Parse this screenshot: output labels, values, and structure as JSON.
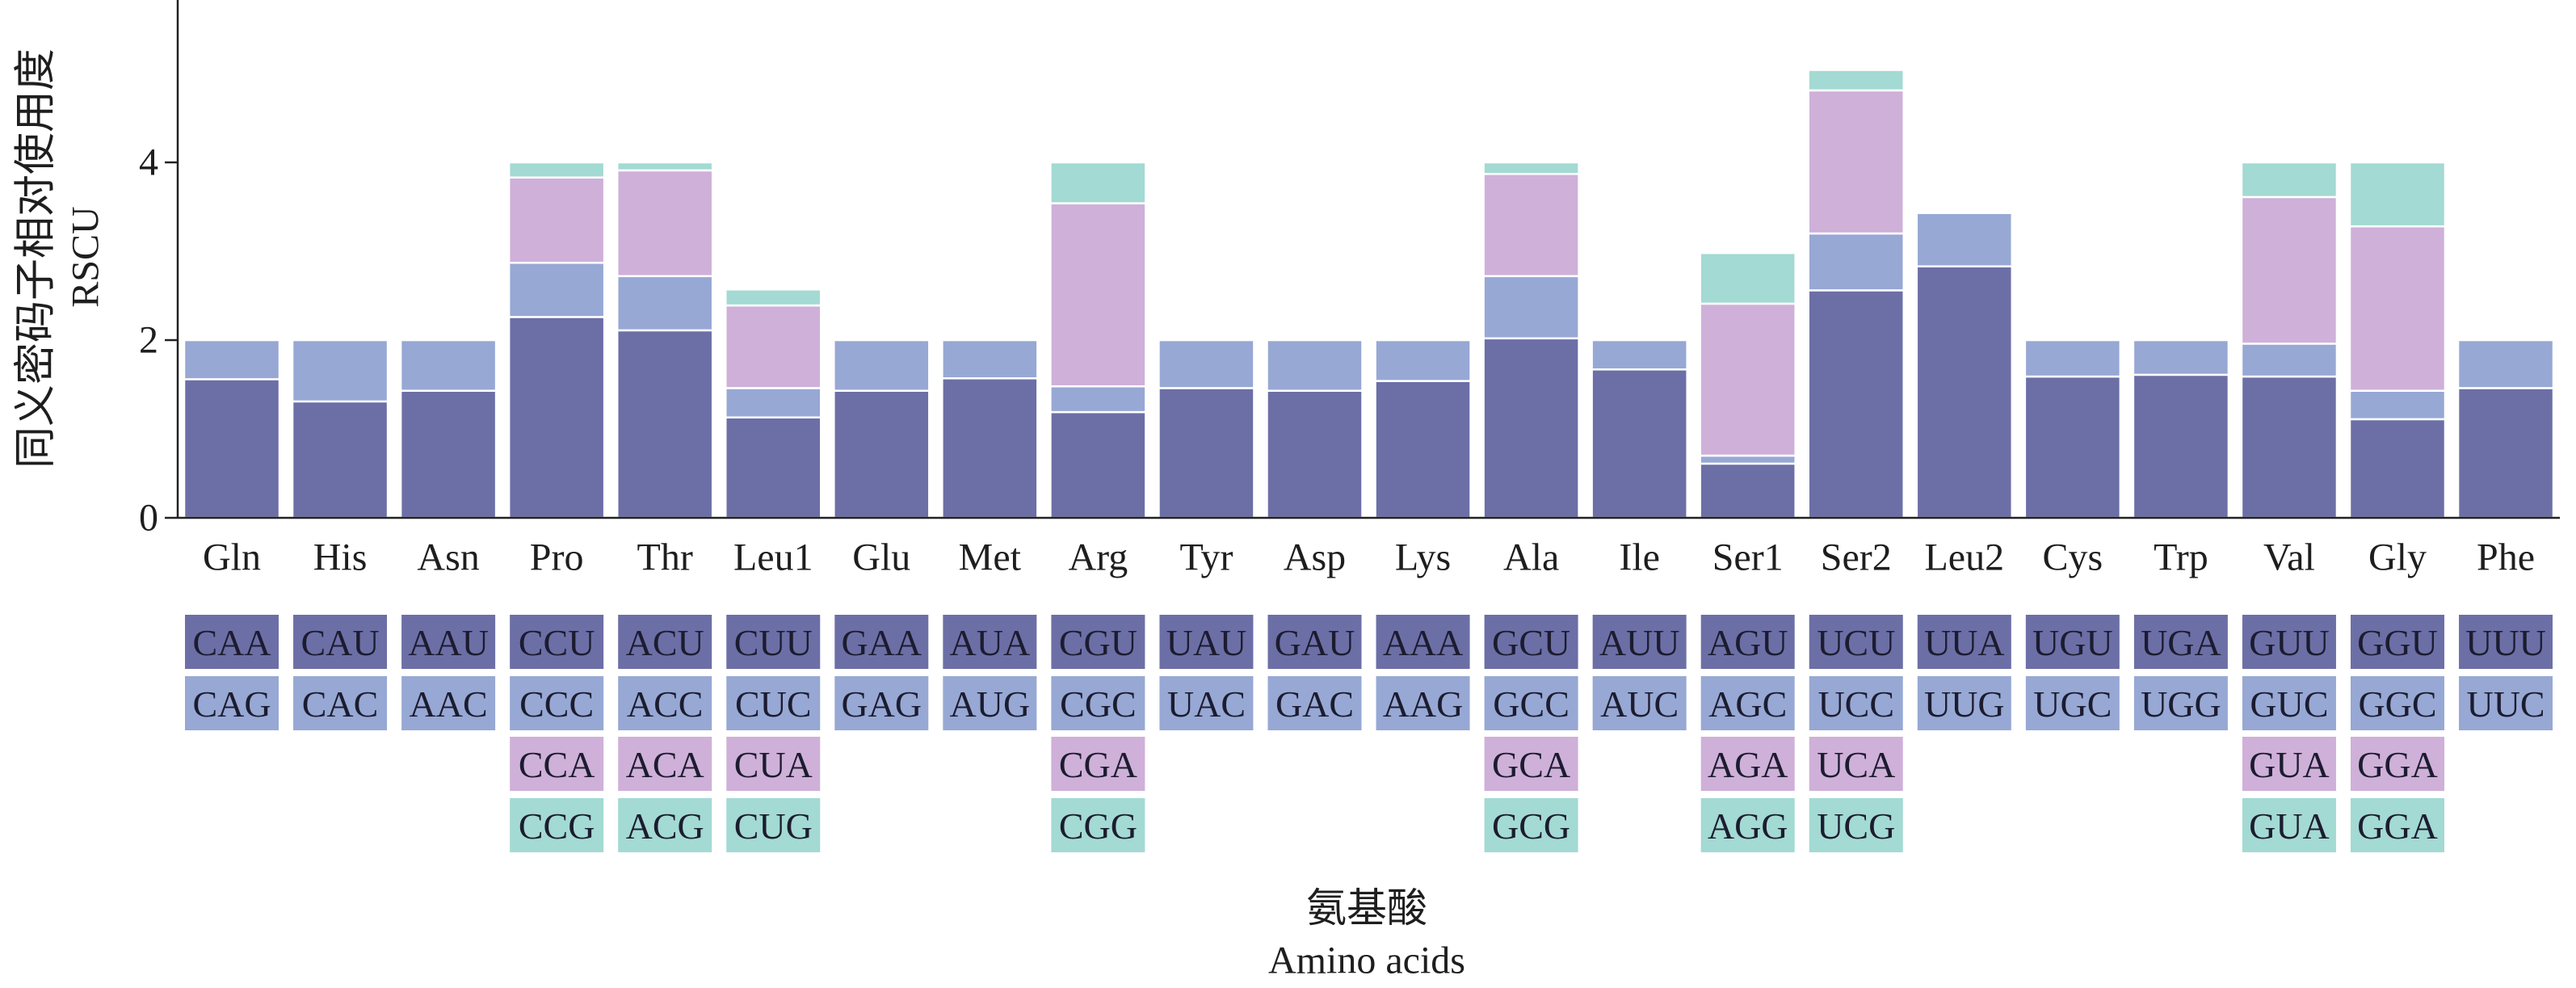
{
  "chart_data": {
    "type": "bar",
    "stacked": true,
    "xlabel": [
      "氨基酸",
      "Amino acids"
    ],
    "ylabel": [
      "同义密码子相对使用度",
      "RSCU"
    ],
    "ylim": [
      0,
      5.83
    ],
    "yticks": [
      0,
      2,
      4
    ],
    "grid": false,
    "legend": "none",
    "segment_colors": [
      "#6c6fa6",
      "#97a8d4",
      "#cfb0d9",
      "#a3dad3"
    ],
    "bars": [
      {
        "label": "Gln",
        "segments": [
          {
            "codon": "CAA",
            "value": 1.56
          },
          {
            "codon": "CAG",
            "value": 0.44
          }
        ]
      },
      {
        "label": "His",
        "segments": [
          {
            "codon": "CAU",
            "value": 1.31
          },
          {
            "codon": "CAC",
            "value": 0.69
          }
        ]
      },
      {
        "label": "Asn",
        "segments": [
          {
            "codon": "AAU",
            "value": 1.43
          },
          {
            "codon": "AAC",
            "value": 0.57
          }
        ]
      },
      {
        "label": "Pro",
        "segments": [
          {
            "codon": "CCU",
            "value": 2.26
          },
          {
            "codon": "CCC",
            "value": 0.61
          },
          {
            "codon": "CCA",
            "value": 0.96
          },
          {
            "codon": "CCG",
            "value": 0.17
          }
        ]
      },
      {
        "label": "Thr",
        "segments": [
          {
            "codon": "ACU",
            "value": 2.11
          },
          {
            "codon": "ACC",
            "value": 0.61
          },
          {
            "codon": "ACA",
            "value": 1.19
          },
          {
            "codon": "ACG",
            "value": 0.09
          }
        ]
      },
      {
        "label": "Leu1",
        "segments": [
          {
            "codon": "CUU",
            "value": 1.13
          },
          {
            "codon": "CUC",
            "value": 0.33
          },
          {
            "codon": "CUA",
            "value": 0.93
          },
          {
            "codon": "CUG",
            "value": 0.18
          }
        ]
      },
      {
        "label": "Glu",
        "segments": [
          {
            "codon": "GAA",
            "value": 1.43
          },
          {
            "codon": "GAG",
            "value": 0.57
          }
        ]
      },
      {
        "label": "Met",
        "segments": [
          {
            "codon": "AUA",
            "value": 1.57
          },
          {
            "codon": "AUG",
            "value": 0.43
          }
        ]
      },
      {
        "label": "Arg",
        "segments": [
          {
            "codon": "CGU",
            "value": 1.19
          },
          {
            "codon": "CGC",
            "value": 0.29
          },
          {
            "codon": "CGA",
            "value": 2.06
          },
          {
            "codon": "CGG",
            "value": 0.46
          }
        ]
      },
      {
        "label": "Tyr",
        "segments": [
          {
            "codon": "UAU",
            "value": 1.46
          },
          {
            "codon": "UAC",
            "value": 0.54
          }
        ]
      },
      {
        "label": "Asp",
        "segments": [
          {
            "codon": "GAU",
            "value": 1.43
          },
          {
            "codon": "GAC",
            "value": 0.57
          }
        ]
      },
      {
        "label": "Lys",
        "segments": [
          {
            "codon": "AAA",
            "value": 1.54
          },
          {
            "codon": "AAG",
            "value": 0.46
          }
        ]
      },
      {
        "label": "Ala",
        "segments": [
          {
            "codon": "GCU",
            "value": 2.02
          },
          {
            "codon": "GCC",
            "value": 0.7
          },
          {
            "codon": "GCA",
            "value": 1.15
          },
          {
            "codon": "GCG",
            "value": 0.13
          }
        ]
      },
      {
        "label": "Ile",
        "segments": [
          {
            "codon": "AUU",
            "value": 1.67
          },
          {
            "codon": "AUC",
            "value": 0.33
          }
        ]
      },
      {
        "label": "Ser1",
        "segments": [
          {
            "codon": "AGU",
            "value": 0.61
          },
          {
            "codon": "AGC",
            "value": 0.09
          },
          {
            "codon": "AGA",
            "value": 1.71
          },
          {
            "codon": "AGG",
            "value": 0.57
          }
        ]
      },
      {
        "label": "Ser2",
        "segments": [
          {
            "codon": "UCU",
            "value": 2.56
          },
          {
            "codon": "UCC",
            "value": 0.64
          },
          {
            "codon": "UCA",
            "value": 1.61
          },
          {
            "codon": "UCG",
            "value": 0.23
          }
        ]
      },
      {
        "label": "Leu2",
        "segments": [
          {
            "codon": "UUA",
            "value": 2.83
          },
          {
            "codon": "UUG",
            "value": 0.6
          }
        ]
      },
      {
        "label": "Cys",
        "segments": [
          {
            "codon": "UGU",
            "value": 1.59
          },
          {
            "codon": "UGC",
            "value": 0.41
          }
        ]
      },
      {
        "label": "Trp",
        "segments": [
          {
            "codon": "UGA",
            "value": 1.61
          },
          {
            "codon": "UGG",
            "value": 0.39
          }
        ]
      },
      {
        "label": "Val",
        "segments": [
          {
            "codon": "GUU",
            "value": 1.59
          },
          {
            "codon": "GUC",
            "value": 0.37
          },
          {
            "codon": "GUA",
            "value": 1.65
          },
          {
            "codon": "GUA",
            "value": 0.39
          }
        ]
      },
      {
        "label": "Gly",
        "segments": [
          {
            "codon": "GGU",
            "value": 1.11
          },
          {
            "codon": "GGC",
            "value": 0.32
          },
          {
            "codon": "GGA",
            "value": 1.85
          },
          {
            "codon": "GGA",
            "value": 0.72
          }
        ]
      },
      {
        "label": "Phe",
        "segments": [
          {
            "codon": "UUU",
            "value": 1.46
          },
          {
            "codon": "UUC",
            "value": 0.54
          }
        ]
      }
    ]
  }
}
